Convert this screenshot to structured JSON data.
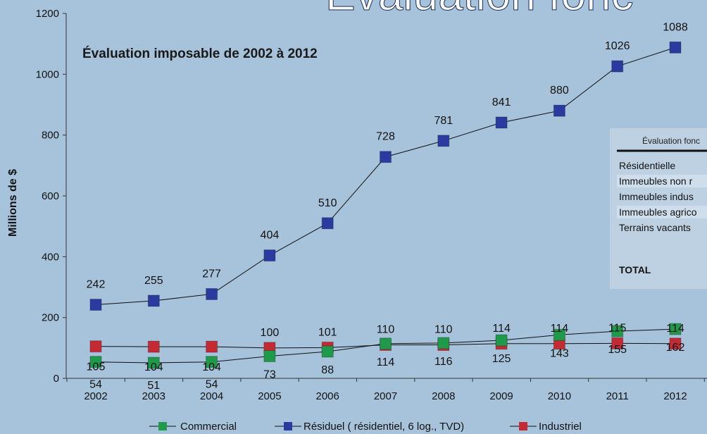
{
  "page": {
    "background": "#a7c3db",
    "big_title_fragment": "Évaluation fonc",
    "subtitle": "Évaluation imposable de 2002 à 2012"
  },
  "chart_data": {
    "type": "line",
    "title": "Évaluation imposable de 2002 à 2012",
    "xlabel": "",
    "ylabel": "Millions de $",
    "ylim": [
      0,
      1200
    ],
    "yticks": [
      0,
      200,
      400,
      600,
      800,
      1000,
      1200
    ],
    "categories": [
      "2002",
      "2003",
      "2004",
      "2005",
      "2006",
      "2007",
      "2008",
      "2009",
      "2010",
      "2011",
      "2012"
    ],
    "series": [
      {
        "name": "Commercial",
        "color": "#1f9a4a",
        "values": [
          54,
          51,
          54,
          73,
          88,
          114,
          116,
          125,
          143,
          155,
          162
        ]
      },
      {
        "name": "Résiduel ( résidentiel, 6 log., TVD)",
        "color": "#2b3a9e",
        "values": [
          242,
          255,
          277,
          404,
          510,
          728,
          781,
          841,
          880,
          1026,
          1088
        ]
      },
      {
        "name": "Industriel",
        "color": "#c42a34",
        "values": [
          105,
          104,
          104,
          100,
          101,
          110,
          110,
          114,
          114,
          115,
          114
        ]
      }
    ],
    "grid": false,
    "legend": "bottom"
  },
  "inset_table": {
    "header": "Évaluation fonc",
    "rows": [
      "Résidentielle",
      "Immeubles non r",
      "Immeubles indus",
      "Immeubles agrico",
      "Terrains vacants"
    ],
    "total_label": "TOTAL"
  }
}
